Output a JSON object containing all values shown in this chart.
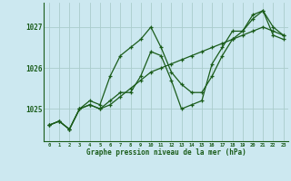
{
  "title": "Graphe pression niveau de la mer (hPa)",
  "bg_color": "#cce8f0",
  "grid_color": "#aacccc",
  "line_color": "#1a5c1a",
  "marker_color": "#1a5c1a",
  "ylabel_ticks": [
    1025,
    1026,
    1027
  ],
  "xticks": [
    0,
    1,
    2,
    3,
    4,
    5,
    6,
    7,
    8,
    9,
    10,
    11,
    12,
    13,
    14,
    15,
    16,
    17,
    18,
    19,
    20,
    21,
    22,
    23
  ],
  "series": [
    [
      1024.6,
      1024.7,
      1024.5,
      1025.0,
      1025.1,
      1025.0,
      1025.1,
      1025.3,
      1025.5,
      1025.7,
      1025.9,
      1026.0,
      1026.1,
      1026.2,
      1026.3,
      1026.4,
      1026.5,
      1026.6,
      1026.7,
      1026.8,
      1026.9,
      1027.0,
      1026.9,
      1026.8
    ],
    [
      1024.6,
      1024.7,
      1024.5,
      1025.0,
      1025.2,
      1025.1,
      1025.8,
      1026.3,
      1026.5,
      1026.7,
      1027.0,
      1026.5,
      1025.9,
      1025.6,
      1025.4,
      1025.4,
      1025.8,
      1026.3,
      1026.7,
      1026.9,
      1027.3,
      1027.4,
      1027.0,
      1026.8
    ],
    [
      1024.6,
      1024.7,
      1024.5,
      1025.0,
      1025.1,
      1025.0,
      1025.2,
      1025.4,
      1025.4,
      1025.8,
      1026.4,
      1026.3,
      1025.7,
      1025.0,
      1025.1,
      1025.2,
      1026.1,
      1026.5,
      1026.9,
      1026.9,
      1027.2,
      1027.4,
      1026.8,
      1026.7
    ]
  ],
  "xlim": [
    -0.5,
    23.5
  ],
  "ylim": [
    1024.2,
    1027.6
  ],
  "figsize": [
    3.2,
    2.0
  ],
  "dpi": 100
}
